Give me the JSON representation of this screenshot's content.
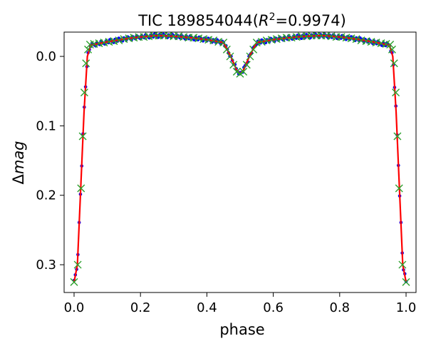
{
  "chart_data": {
    "type": "scatter",
    "title_prefix": "TIC 189854044(",
    "title_var": "R",
    "title_sup": "2",
    "title_suffix": "=0.9974)",
    "xlabel": "phase",
    "ylabel_delta": "Δ",
    "ylabel_var": "mag",
    "xlim": [
      -0.03,
      1.03
    ],
    "ylim": [
      0.34,
      -0.035
    ],
    "y_inverted": true,
    "grid": false,
    "x_ticks": [
      0.0,
      0.2,
      0.4,
      0.6,
      0.8,
      1.0
    ],
    "x_tick_labels": [
      "0.0",
      "0.2",
      "0.4",
      "0.6",
      "0.8",
      "1.0"
    ],
    "y_ticks": [
      0.0,
      0.1,
      0.2,
      0.3
    ],
    "y_tick_labels": [
      "0.0",
      "0.1",
      "0.2",
      "0.3"
    ],
    "colors": {
      "observed": "#0000ff",
      "model_line": "#ff0000",
      "model_markers": "#2ca02c"
    },
    "model_curve": {
      "x": [
        0.0,
        0.01,
        0.02,
        0.03,
        0.04,
        0.05,
        0.1,
        0.15,
        0.2,
        0.25,
        0.3,
        0.35,
        0.4,
        0.45,
        0.47,
        0.49,
        0.5,
        0.51,
        0.53,
        0.55,
        0.6,
        0.65,
        0.7,
        0.75,
        0.8,
        0.85,
        0.9,
        0.95,
        0.96,
        0.97,
        0.98,
        0.99,
        1.0
      ],
      "y": [
        0.325,
        0.3,
        0.19,
        0.08,
        0.0,
        -0.016,
        -0.021,
        -0.025,
        -0.028,
        -0.03,
        -0.029,
        -0.027,
        -0.024,
        -0.02,
        -0.002,
        0.02,
        0.025,
        0.02,
        -0.002,
        -0.02,
        -0.024,
        -0.027,
        -0.029,
        -0.03,
        -0.028,
        -0.025,
        -0.021,
        -0.016,
        0.0,
        0.08,
        0.19,
        0.3,
        0.325
      ]
    },
    "series": [
      {
        "role": "model_markers",
        "marker": "x",
        "x": [
          0.0,
          0.011,
          0.021,
          0.026,
          0.031,
          0.036,
          0.042,
          0.048,
          0.06,
          0.075,
          0.09,
          0.105,
          0.12,
          0.135,
          0.15,
          0.165,
          0.18,
          0.195,
          0.21,
          0.225,
          0.24,
          0.255,
          0.27,
          0.285,
          0.3,
          0.315,
          0.33,
          0.345,
          0.36,
          0.375,
          0.39,
          0.405,
          0.42,
          0.435,
          0.45,
          0.46,
          0.47,
          0.48,
          0.49,
          0.5,
          0.51,
          0.52,
          0.53,
          0.54,
          0.55,
          0.565,
          0.58,
          0.595,
          0.61,
          0.625,
          0.64,
          0.655,
          0.67,
          0.685,
          0.7,
          0.715,
          0.73,
          0.745,
          0.76,
          0.775,
          0.79,
          0.805,
          0.82,
          0.835,
          0.85,
          0.865,
          0.88,
          0.895,
          0.91,
          0.925,
          0.94,
          0.952,
          0.958,
          0.964,
          0.969,
          0.974,
          0.979,
          0.989,
          1.0
        ],
        "y": [
          0.325,
          0.3,
          0.19,
          0.115,
          0.052,
          0.01,
          -0.01,
          -0.017,
          -0.018,
          -0.019,
          -0.02,
          -0.021,
          -0.022,
          -0.023,
          -0.025,
          -0.026,
          -0.027,
          -0.028,
          -0.028,
          -0.029,
          -0.03,
          -0.03,
          -0.03,
          -0.03,
          -0.029,
          -0.029,
          -0.028,
          -0.027,
          -0.027,
          -0.026,
          -0.025,
          -0.024,
          -0.023,
          -0.021,
          -0.02,
          -0.01,
          0.0,
          0.012,
          0.022,
          0.025,
          0.022,
          0.012,
          0.0,
          -0.01,
          -0.02,
          -0.021,
          -0.023,
          -0.024,
          -0.025,
          -0.026,
          -0.027,
          -0.027,
          -0.028,
          -0.029,
          -0.029,
          -0.03,
          -0.03,
          -0.03,
          -0.03,
          -0.029,
          -0.028,
          -0.028,
          -0.027,
          -0.026,
          -0.025,
          -0.023,
          -0.022,
          -0.021,
          -0.02,
          -0.019,
          -0.018,
          -0.017,
          -0.01,
          0.01,
          0.052,
          0.115,
          0.19,
          0.3,
          0.325
        ]
      }
    ]
  }
}
